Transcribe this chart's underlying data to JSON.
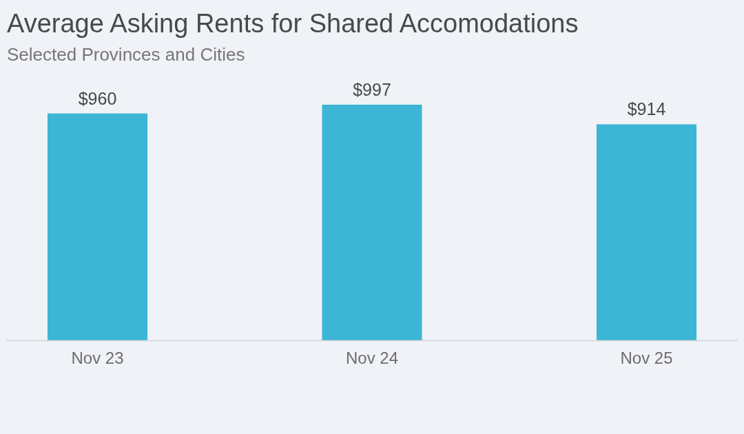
{
  "chart_data": {
    "type": "bar",
    "title": "Average Asking Rents for Shared Accomodations",
    "subtitle": "Selected Provinces and Cities",
    "categories": [
      "Nov 23",
      "Nov 24",
      "Nov 25"
    ],
    "values": [
      960,
      997,
      914
    ],
    "color": "#3db5d4",
    "value_labels": [
      "$960",
      "$997",
      "$914"
    ]
  }
}
